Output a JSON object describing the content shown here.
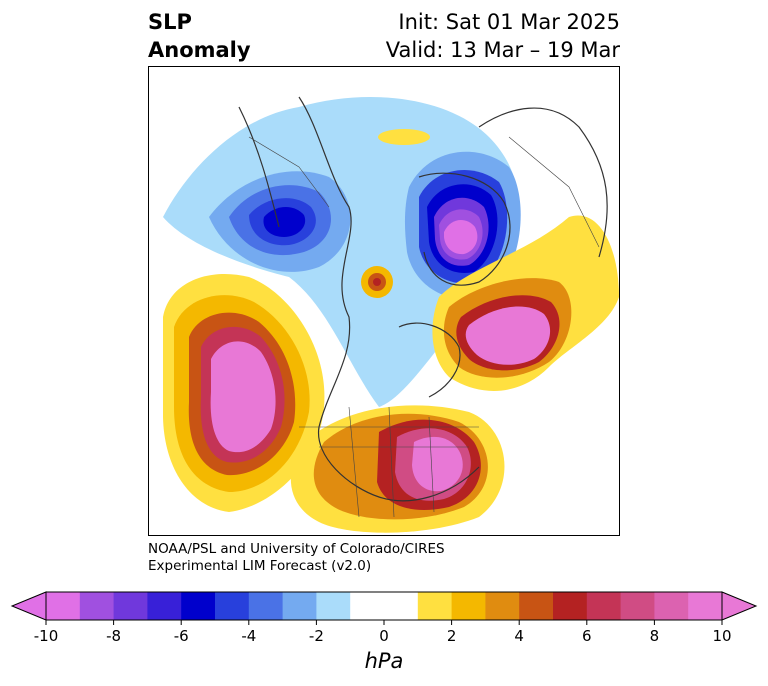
{
  "title": {
    "left_line1": "SLP",
    "left_line2": "Anomaly",
    "right_line1": "Init: Sat 01 Mar 2025",
    "right_line2": "Valid: 13 Mar – 19 Mar"
  },
  "credit": {
    "line1": "NOAA/PSL and University of Colorado/CIRES",
    "line2": "Experimental LIM Forecast (v2.0)"
  },
  "colorbar": {
    "unit": "hPa",
    "tick_labels": [
      "-10",
      "-8",
      "-6",
      "-4",
      "-2",
      "0",
      "2",
      "4",
      "6",
      "8",
      "10"
    ],
    "colors": [
      "#e070e6",
      "#a050e0",
      "#7038dc",
      "#3820d8",
      "#0000cc",
      "#2840dc",
      "#4a72e6",
      "#74aaf0",
      "#aadcfa",
      "#ffffff",
      "#ffffff",
      "#ffe040",
      "#f4b800",
      "#e08c10",
      "#c85414",
      "#b42222",
      "#c43456",
      "#d04c84",
      "#dc62b0",
      "#e878d6"
    ],
    "under_color": "#e070e6",
    "over_color": "#e878d6"
  },
  "map_anomalies": [
    {
      "label": "low-greenland",
      "level": -10
    },
    {
      "label": "low-east-siberia",
      "level": -6
    },
    {
      "label": "high-north-pacific",
      "level": 10
    },
    {
      "label": "high-eastern-us",
      "level": 8
    },
    {
      "label": "high-north-atlantic",
      "level": 10
    },
    {
      "label": "high-arctic-small",
      "level": 4
    }
  ]
}
